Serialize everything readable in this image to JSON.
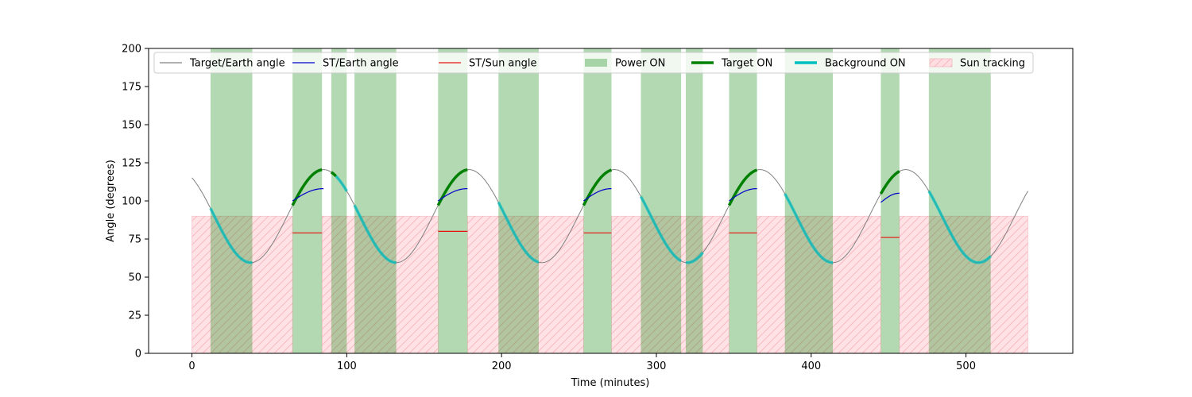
{
  "chart_data": {
    "type": "line",
    "title": "",
    "xlabel": "Time (minutes)",
    "ylabel": "Angle (degrees)",
    "xlim": [
      -28,
      569
    ],
    "ylim": [
      0,
      200
    ],
    "xticks": [
      0,
      100,
      200,
      300,
      400,
      500
    ],
    "yticks": [
      0,
      25,
      50,
      75,
      100,
      125,
      150,
      175,
      200
    ],
    "legend_position": "top",
    "legend": [
      {
        "label": "Target/Earth angle",
        "kind": "line",
        "color": "#808080"
      },
      {
        "label": "ST/Earth angle",
        "kind": "line",
        "color": "#0000cc"
      },
      {
        "label": "ST/Sun angle",
        "kind": "line",
        "color": "#e8110f"
      },
      {
        "label": "Power ON",
        "kind": "patch",
        "color": "#b3d9b3"
      },
      {
        "label": "Target ON",
        "kind": "thickline",
        "color": "#008000"
      },
      {
        "label": "Background ON",
        "kind": "thickline",
        "color": "#00bfbf"
      },
      {
        "label": "Sun tracking",
        "kind": "hatch",
        "color": "#ffdde1"
      }
    ],
    "target_earth_curve": {
      "x_range": [
        0,
        540
      ],
      "center": 90,
      "amplitude": 30.5,
      "period_min": 94,
      "peak_at_min": -9,
      "color": "#808080"
    },
    "power_on_intervals": [
      [
        12,
        39
      ],
      [
        65,
        84
      ],
      [
        90,
        100
      ],
      [
        105,
        132
      ],
      [
        159,
        178
      ],
      [
        198,
        224
      ],
      [
        253,
        271
      ],
      [
        290,
        316
      ],
      [
        319,
        330
      ],
      [
        347,
        365
      ],
      [
        383,
        414
      ],
      [
        445,
        457
      ],
      [
        476,
        516
      ]
    ],
    "target_on_intervals": [
      [
        65,
        84
      ],
      [
        90,
        93
      ],
      [
        159,
        178
      ],
      [
        253,
        271
      ],
      [
        347,
        365
      ],
      [
        445,
        457
      ]
    ],
    "background_on_intervals": [
      [
        12,
        39
      ],
      [
        93,
        100
      ],
      [
        105,
        132
      ],
      [
        198,
        224
      ],
      [
        290,
        316
      ],
      [
        319,
        330
      ],
      [
        383,
        414
      ],
      [
        476,
        516
      ]
    ],
    "sun_tracking": {
      "level": 90,
      "intervals": [
        [
          0,
          65
        ],
        [
          84,
          159
        ],
        [
          178,
          253
        ],
        [
          271,
          347
        ],
        [
          365,
          445
        ],
        [
          457,
          540
        ]
      ]
    },
    "st_earth_segments": [
      {
        "x": [
          65,
          85
        ],
        "y_start": 100,
        "y_end": 108
      },
      {
        "x": [
          159,
          178
        ],
        "y_start": 100,
        "y_end": 108
      },
      {
        "x": [
          253,
          271
        ],
        "y_start": 100,
        "y_end": 108
      },
      {
        "x": [
          347,
          365
        ],
        "y_start": 100,
        "y_end": 108
      },
      {
        "x": [
          445,
          457
        ],
        "y_start": 99,
        "y_end": 105
      }
    ],
    "st_sun_segments": [
      {
        "x": [
          65,
          84
        ],
        "y": 79
      },
      {
        "x": [
          159,
          178
        ],
        "y": 80
      },
      {
        "x": [
          253,
          271
        ],
        "y": 79
      },
      {
        "x": [
          347,
          365
        ],
        "y": 79
      },
      {
        "x": [
          445,
          457
        ],
        "y": 76
      }
    ]
  }
}
